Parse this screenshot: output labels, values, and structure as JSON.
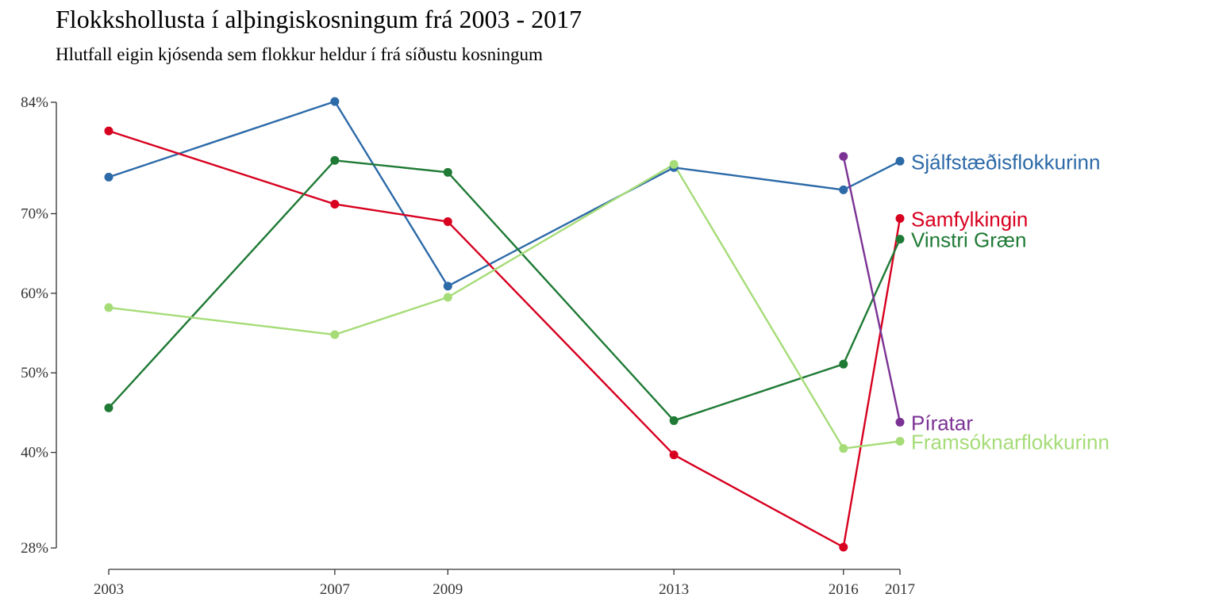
{
  "title": "Flokkshollusta í alþingiskosningum frá 2003 - 2017",
  "subtitle": "Hlutfall eigin kjósenda sem flokkur heldur í frá síðustu kosningum",
  "chart_data": {
    "type": "line",
    "title": "Flokkshollusta í alþingiskosningum frá 2003 - 2017",
    "subtitle": "Hlutfall eigin kjósenda sem flokkur heldur í frá síðustu kosningum",
    "x_ticks": [
      2003,
      2007,
      2009,
      2013,
      2016,
      2017
    ],
    "y_ticks": [
      28,
      40,
      50,
      60,
      70,
      84
    ],
    "y_tick_labels": [
      "28%",
      "40%",
      "50%",
      "60%",
      "70%",
      "84%"
    ],
    "xlim": [
      2003,
      2017
    ],
    "ylim": [
      28,
      84
    ],
    "grid": false,
    "legend": "direct labels at right end of lines",
    "series": [
      {
        "name": "Sjálfstæðisflokkurinn",
        "color": "#2c6aa8",
        "x": [
          2003,
          2007,
          2009,
          2013,
          2016,
          2017
        ],
        "y": [
          74.6,
          84.1,
          60.9,
          75.8,
          73.0,
          76.6
        ]
      },
      {
        "name": "Samfylkingin",
        "color": "#d7001f",
        "x": [
          2003,
          2007,
          2009,
          2013,
          2016,
          2017
        ],
        "y": [
          80.4,
          71.2,
          69.0,
          39.7,
          28.1,
          69.4
        ]
      },
      {
        "name": "Vinstri Græn",
        "color": "#1f7a35",
        "x": [
          2003,
          2007,
          2009,
          2013,
          2016,
          2017
        ],
        "y": [
          45.6,
          76.7,
          75.2,
          44.0,
          51.1,
          66.8
        ]
      },
      {
        "name": "Píratar",
        "color": "#7b3294",
        "x": [
          2016,
          2017
        ],
        "y": [
          77.2,
          43.8
        ]
      },
      {
        "name": "Framsóknarflokkurinn",
        "color": "#a6dc78",
        "x": [
          2003,
          2007,
          2009,
          2013,
          2016,
          2017
        ],
        "y": [
          58.2,
          54.8,
          59.5,
          76.2,
          40.5,
          41.4
        ]
      }
    ]
  }
}
